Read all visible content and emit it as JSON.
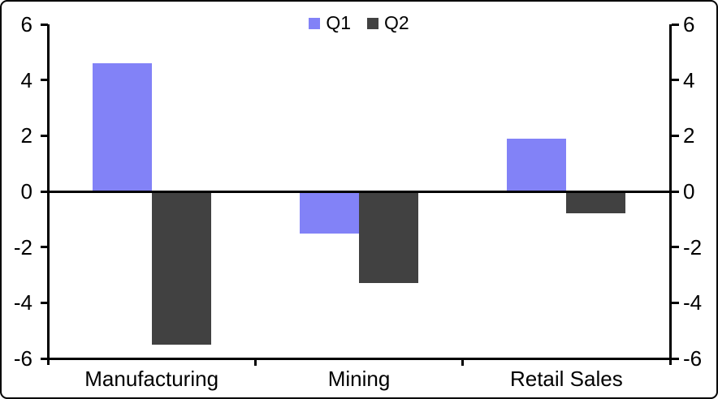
{
  "chart_data": {
    "type": "bar",
    "title": "",
    "xlabel": "",
    "ylabel": "",
    "categories": [
      "Manufacturing",
      "Mining",
      "Retail Sales"
    ],
    "series": [
      {
        "name": "Q1",
        "color": "#8282f7",
        "values": [
          4.6,
          -1.5,
          1.9
        ]
      },
      {
        "name": "Q2",
        "color": "#414141",
        "values": [
          -5.5,
          -3.3,
          -0.8
        ]
      }
    ],
    "ylim": [
      -6,
      6
    ],
    "yticks": [
      6,
      4,
      2,
      0,
      -2,
      -4,
      -6
    ],
    "y_axis_sides": "both",
    "legend_position": "top-center",
    "grid": false,
    "zero_line": true,
    "axis_color": "#000000",
    "background": "#ffffff"
  }
}
